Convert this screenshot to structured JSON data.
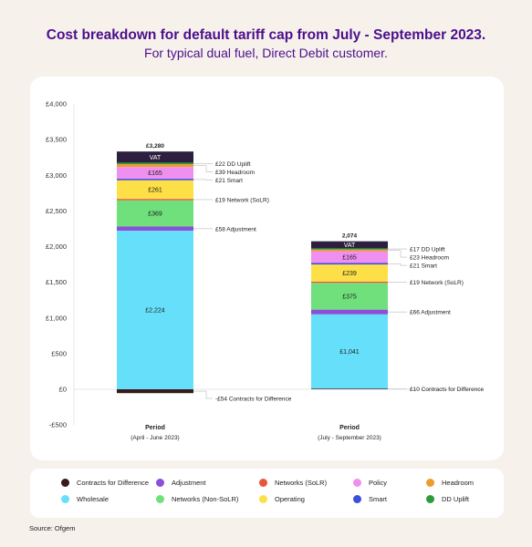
{
  "title": "Cost breakdown for default tariff cap from July - September 2023.",
  "subtitle": "For typical dual fuel, Direct Debit customer.",
  "source": "Source: Ofgem",
  "colors": {
    "contracts_for_difference": "#3a1a1a",
    "adjustment": "#8b4fd9",
    "networks_solr": "#e8553a",
    "policy": "#ef8fef",
    "headroom": "#f09a2e",
    "wholesale": "#66e0fa",
    "networks_non_solr": "#6fe07c",
    "operating": "#fde047",
    "smart": "#3b4fd9",
    "dd_uplift": "#2e9a3a",
    "vat": "#2c1f3f"
  },
  "legend": [
    {
      "label": "Contracts for Difference",
      "color": "#3a1a1a"
    },
    {
      "label": "Adjustment",
      "color": "#8b4fd9"
    },
    {
      "label": "Networks (SoLR)",
      "color": "#e8553a"
    },
    {
      "label": "Policy",
      "color": "#ef8fef"
    },
    {
      "label": "Headroom",
      "color": "#f09a2e"
    },
    {
      "label": "Wholesale",
      "color": "#66e0fa"
    },
    {
      "label": "Networks (Non-SoLR)",
      "color": "#6fe07c"
    },
    {
      "label": "Operating",
      "color": "#fde047"
    },
    {
      "label": "Smart",
      "color": "#3b4fd9"
    },
    {
      "label": "DD Uplift",
      "color": "#2e9a3a"
    }
  ],
  "chart_data": {
    "type": "bar",
    "stacked": true,
    "ylim": [
      -500,
      4000
    ],
    "yticks": [
      {
        "value": 4000,
        "label": "£4,000"
      },
      {
        "value": 3500,
        "label": "£3,500"
      },
      {
        "value": 3000,
        "label": "£3,000"
      },
      {
        "value": 2500,
        "label": "£2,500"
      },
      {
        "value": 2000,
        "label": "£2,000"
      },
      {
        "value": 1500,
        "label": "£1,500"
      },
      {
        "value": 1000,
        "label": "£1,000"
      },
      {
        "value": 500,
        "label": "£500"
      },
      {
        "value": 0,
        "label": "£0"
      },
      {
        "value": -500,
        "label": "-£500"
      }
    ],
    "bars": [
      {
        "category": "Period",
        "sublabel": "(April - June 2023)",
        "total_label": "£3,280",
        "negative": [
          {
            "name": "Contracts for Difference",
            "value": -54,
            "color": "#3a1a1a",
            "callout": "-£54 Contracts for Difference"
          }
        ],
        "segments": [
          {
            "name": "Wholesale",
            "value": 2224,
            "color": "#66e0fa",
            "label": "£2,224"
          },
          {
            "name": "Adjustment",
            "value": 58,
            "color": "#8b4fd9",
            "callout": "£58 Adjustment"
          },
          {
            "name": "Networks (Non-SoLR)",
            "value": 369,
            "color": "#6fe07c",
            "label": "£369"
          },
          {
            "name": "Networks (SoLR)",
            "value": 19,
            "color": "#e8553a",
            "callout": "£19 Network (SoLR)"
          },
          {
            "name": "Operating",
            "value": 261,
            "color": "#fde047",
            "label": "£261"
          },
          {
            "name": "Smart",
            "value": 21,
            "color": "#3b4fd9",
            "callout": "£21 Smart"
          },
          {
            "name": "Policy",
            "value": 165,
            "color": "#ef8fef",
            "label": "£165"
          },
          {
            "name": "Headroom",
            "value": 39,
            "color": "#f09a2e",
            "callout": "£39 Headroom"
          },
          {
            "name": "DD Uplift",
            "value": 22,
            "color": "#2e9a3a",
            "callout": "£22 DD Uplift"
          },
          {
            "name": "VAT",
            "value": 156,
            "color": "#2c1f3f",
            "label": "VAT"
          }
        ]
      },
      {
        "category": "Period",
        "sublabel": "(July - September 2023)",
        "total_label": "2,074",
        "negative": [],
        "segments": [
          {
            "name": "Contracts for Difference",
            "value": 10,
            "color": "#3a1a1a",
            "callout": "£10 Contracts for Difference"
          },
          {
            "name": "Wholesale",
            "value": 1041,
            "color": "#66e0fa",
            "label": "£1,041"
          },
          {
            "name": "Adjustment",
            "value": 66,
            "color": "#8b4fd9",
            "callout": "£66 Adjustment"
          },
          {
            "name": "Networks (Non-SoLR)",
            "value": 375,
            "color": "#6fe07c",
            "label": "£375"
          },
          {
            "name": "Networks (SoLR)",
            "value": 19,
            "color": "#e8553a",
            "callout": "£19 Network (SoLR)"
          },
          {
            "name": "Operating",
            "value": 239,
            "color": "#fde047",
            "label": "£239"
          },
          {
            "name": "Smart",
            "value": 21,
            "color": "#3b4fd9",
            "callout": "£21 Smart"
          },
          {
            "name": "Policy",
            "value": 165,
            "color": "#ef8fef",
            "label": "£165"
          },
          {
            "name": "Headroom",
            "value": 23,
            "color": "#f09a2e",
            "callout": "£23 Headroom"
          },
          {
            "name": "DD Uplift",
            "value": 17,
            "color": "#2e9a3a",
            "callout": "£17 DD Uplift"
          },
          {
            "name": "VAT",
            "value": 99,
            "color": "#2c1f3f",
            "label": "VAT"
          }
        ]
      }
    ]
  }
}
